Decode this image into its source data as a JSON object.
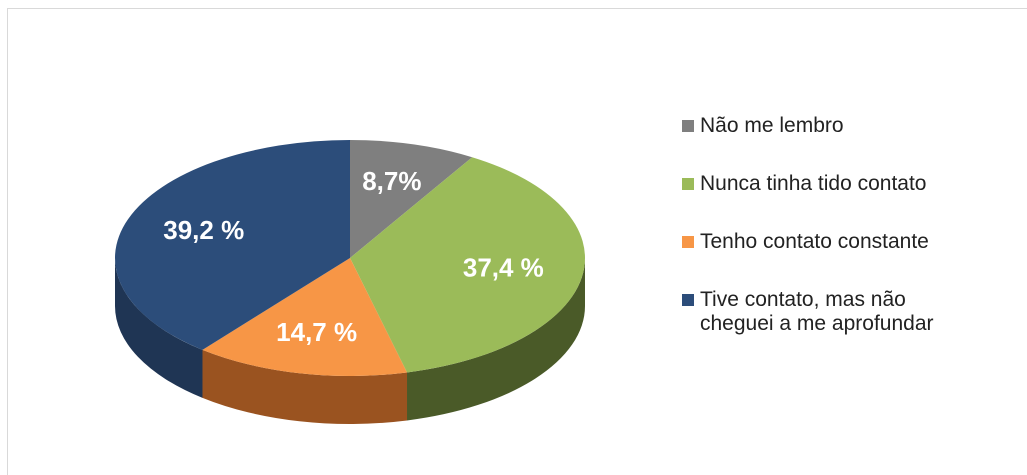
{
  "chart_data": {
    "type": "pie3d",
    "categories": [
      "Não me lembro",
      "Nunca tinha tido contato",
      "Tenho contato constante",
      "Tive contato, mas não cheguei a me aprofundar"
    ],
    "values": [
      8.7,
      37.4,
      14.7,
      39.2
    ],
    "value_labels": [
      "8,7%",
      "37,4 %",
      "14,7 %",
      "39,2 %"
    ],
    "colors": [
      "#7f7f7f",
      "#9bbb59",
      "#f79646",
      "#2c4d7a"
    ],
    "side_colors": [
      "#555555",
      "#4a5a28",
      "#9a5320",
      "#1f3554"
    ],
    "legend": "right"
  }
}
